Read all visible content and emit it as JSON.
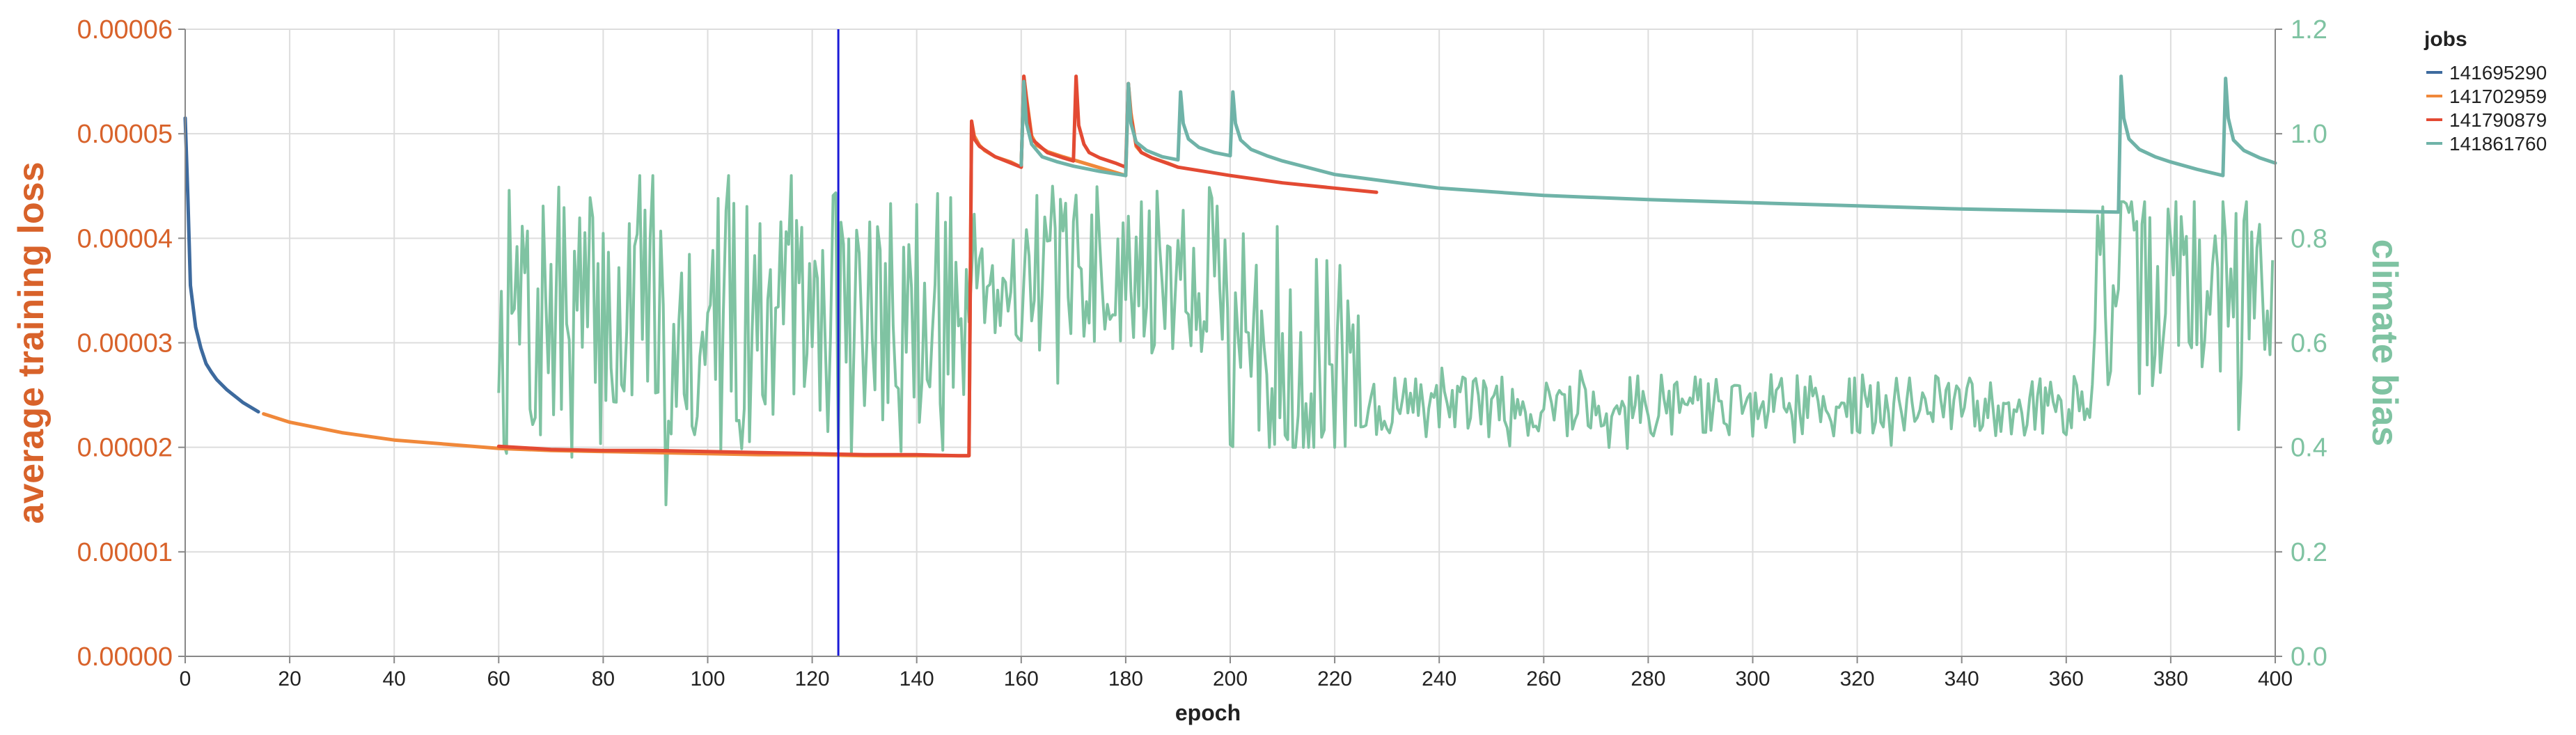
{
  "colors": {
    "job_141695290": "#3d6a9e",
    "job_141702959": "#f0883a",
    "job_141790879": "#e34a33",
    "job_141861760": "#6fb3a8",
    "climate_bias": "#7fc3a2",
    "left_axis": "#d8622a",
    "right_axis": "#7fc3a2",
    "marker": "#1a1ad6",
    "grid": "#dddddd",
    "axis": "#888888"
  },
  "chart_data": {
    "type": "line",
    "title": "",
    "xlabel": "epoch",
    "ylabel_left": "average training loss",
    "ylabel_right": "climate bias",
    "xlim": [
      0,
      400
    ],
    "ylim_left": [
      0,
      6e-05
    ],
    "ylim_right": [
      0,
      1.2
    ],
    "x_ticks": [
      "0",
      "20",
      "40",
      "60",
      "80",
      "100",
      "120",
      "140",
      "160",
      "180",
      "200",
      "220",
      "240",
      "260",
      "280",
      "300",
      "320",
      "340",
      "360",
      "380",
      "400"
    ],
    "y_left_ticks": [
      "0.00000",
      "0.00001",
      "0.00002",
      "0.00003",
      "0.00004",
      "0.00005",
      "0.00006"
    ],
    "y_right_ticks": [
      "0.0",
      "0.2",
      "0.4",
      "0.6",
      "0.8",
      "1.0",
      "1.2"
    ],
    "grid": true,
    "legend": {
      "title": "jobs",
      "placement": "top-right",
      "entries": [
        "141695290",
        "141702959",
        "141790879",
        "141861760"
      ]
    },
    "vertical_marker_epoch": 125,
    "series": [
      {
        "name": "141695290",
        "axis": "left",
        "x": [
          0,
          0.5,
          1,
          2,
          3,
          4,
          5,
          6,
          7,
          8,
          9,
          10,
          11,
          12,
          13,
          14
        ],
        "y": [
          5.15e-05,
          4.4e-05,
          3.55e-05,
          3.15e-05,
          2.95e-05,
          2.8e-05,
          2.72e-05,
          2.65e-05,
          2.6e-05,
          2.55e-05,
          2.51e-05,
          2.47e-05,
          2.43e-05,
          2.4e-05,
          2.37e-05,
          2.34e-05
        ]
      },
      {
        "name": "141702959",
        "axis": "left",
        "x": [
          15,
          20,
          30,
          40,
          50,
          60,
          70,
          80,
          90,
          100,
          110,
          120,
          130,
          140,
          145,
          150,
          150.5,
          151,
          152,
          153,
          155,
          158,
          160,
          160.5,
          161,
          162,
          163,
          165,
          168,
          170,
          180,
          180.5,
          181,
          182,
          183,
          185,
          188,
          190
        ],
        "y": [
          2.32e-05,
          2.24e-05,
          2.14e-05,
          2.07e-05,
          2.03e-05,
          1.99e-05,
          1.97e-05,
          1.96e-05,
          1.95e-05,
          1.94e-05,
          1.93e-05,
          1.93e-05,
          1.92e-05,
          1.92e-05,
          1.92e-05,
          1.92e-05,
          5.12e-05,
          4.98e-05,
          4.89e-05,
          4.84e-05,
          4.78e-05,
          4.73e-05,
          4.68e-05,
          5.55e-05,
          5.35e-05,
          4.98e-05,
          4.89e-05,
          4.83e-05,
          4.78e-05,
          4.75e-05,
          4.6e-05,
          5.48e-05,
          5.2e-05,
          4.88e-05,
          4.82e-05,
          4.77e-05,
          4.72e-05,
          4.68e-05
        ]
      },
      {
        "name": "141790879",
        "axis": "left",
        "x": [
          60,
          70,
          80,
          90,
          100,
          110,
          120,
          130,
          140,
          148,
          150,
          150.5,
          151,
          152,
          155,
          158,
          160,
          160.5,
          161,
          162,
          165,
          168,
          170,
          170.5,
          171,
          172,
          173,
          175,
          178,
          180,
          180.5,
          181,
          182,
          183,
          185,
          190,
          200,
          210,
          220,
          228
        ],
        "y": [
          2.01e-05,
          1.98e-05,
          1.97e-05,
          1.97e-05,
          1.96e-05,
          1.95e-05,
          1.94e-05,
          1.93e-05,
          1.93e-05,
          1.92e-05,
          1.92e-05,
          5.12e-05,
          4.95e-05,
          4.88e-05,
          4.78e-05,
          4.72e-05,
          4.68e-05,
          5.55e-05,
          5.32e-05,
          4.95e-05,
          4.82e-05,
          4.77e-05,
          4.74e-05,
          5.55e-05,
          5.08e-05,
          4.9e-05,
          4.82e-05,
          4.77e-05,
          4.72e-05,
          4.68e-05,
          5.48e-05,
          5.15e-05,
          4.9e-05,
          4.82e-05,
          4.77e-05,
          4.68e-05,
          4.6e-05,
          4.53e-05,
          4.48e-05,
          4.44e-05
        ]
      },
      {
        "name": "141861760",
        "axis": "left",
        "x": [
          160,
          160.5,
          161,
          162,
          164,
          167,
          170,
          175,
          180,
          180.5,
          181,
          182,
          184,
          187,
          190,
          190.5,
          191,
          192,
          194,
          197,
          200,
          200.5,
          201,
          202,
          204,
          207,
          210,
          220,
          240,
          260,
          280,
          300,
          320,
          340,
          360,
          370,
          370.5,
          371,
          372,
          374,
          377,
          380,
          385,
          390,
          390.5,
          391,
          392,
          394,
          397,
          400
        ],
        "y": [
          4.7e-05,
          5.5e-05,
          5.1e-05,
          4.9e-05,
          4.78e-05,
          4.73e-05,
          4.69e-05,
          4.64e-05,
          4.6e-05,
          5.48e-05,
          5.1e-05,
          4.92e-05,
          4.84e-05,
          4.78e-05,
          4.75e-05,
          5.4e-05,
          5.1e-05,
          4.95e-05,
          4.87e-05,
          4.82e-05,
          4.79e-05,
          5.4e-05,
          5.1e-05,
          4.94e-05,
          4.85e-05,
          4.79e-05,
          4.74e-05,
          4.61e-05,
          4.48e-05,
          4.41e-05,
          4.37e-05,
          4.34e-05,
          4.31e-05,
          4.28e-05,
          4.26e-05,
          4.25e-05,
          5.55e-05,
          5.15e-05,
          4.95e-05,
          4.85e-05,
          4.78e-05,
          4.73e-05,
          4.66e-05,
          4.6e-05,
          5.53e-05,
          5.15e-05,
          4.94e-05,
          4.84e-05,
          4.77e-05,
          4.72e-05
        ]
      },
      {
        "name": "",
        "axis": "right",
        "role": "climate bias",
        "seed": 7,
        "segments": [
          {
            "x_start": 60,
            "x_end": 150,
            "mean": 0.64,
            "amp": 0.26,
            "min": 0.29,
            "max": 0.92
          },
          {
            "x_start": 150,
            "x_end": 200,
            "mean": 0.74,
            "amp": 0.16,
            "min": 0.4,
            "max": 0.93
          },
          {
            "x_start": 200,
            "x_end": 225,
            "mean": 0.56,
            "amp": 0.2,
            "min": 0.4,
            "max": 0.85
          },
          {
            "x_start": 225,
            "x_end": 365,
            "mean": 0.48,
            "amp": 0.06,
            "min": 0.35,
            "max": 0.62
          },
          {
            "x_start": 365,
            "x_end": 400,
            "mean": 0.7,
            "amp": 0.2,
            "min": 0.4,
            "max": 0.87
          }
        ]
      }
    ]
  }
}
